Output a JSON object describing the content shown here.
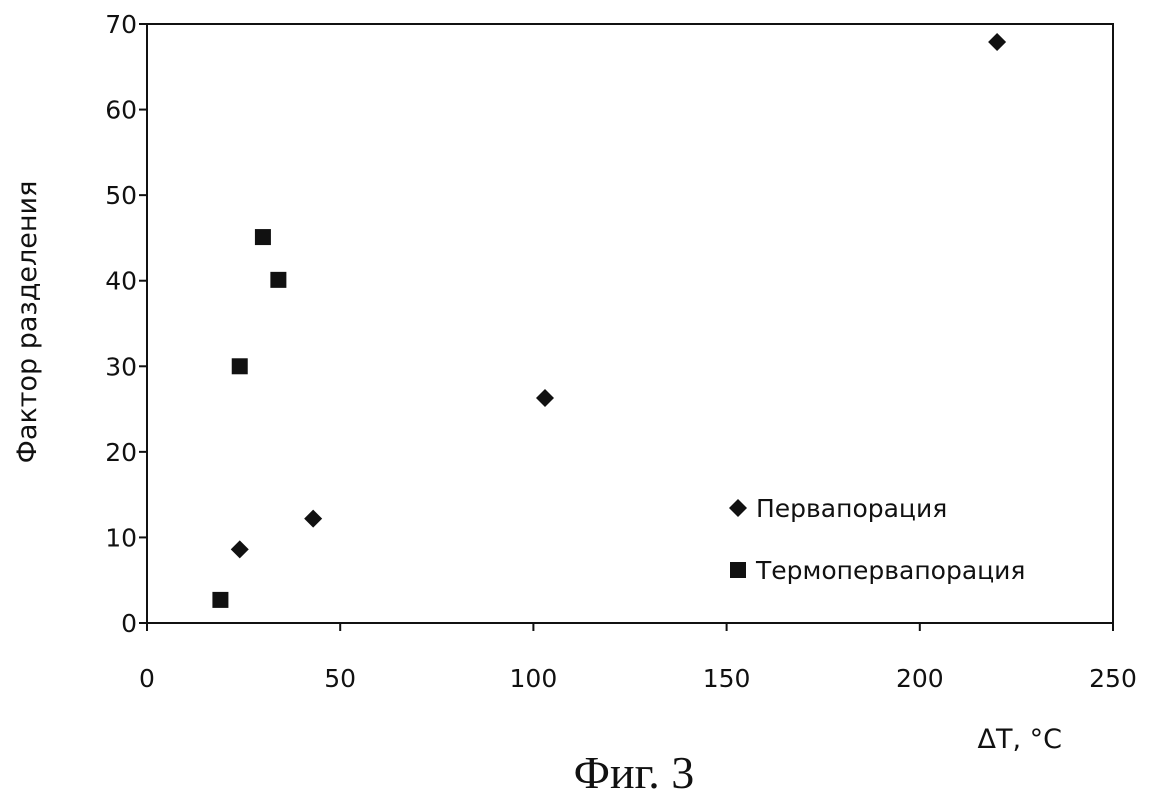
{
  "chart_data": {
    "type": "scatter",
    "title": "",
    "xlabel": "ΔT, °C",
    "ylabel": "Фактор разделения",
    "xlim": [
      0,
      250
    ],
    "ylim": [
      0,
      70
    ],
    "x_ticks": [
      0,
      50,
      100,
      150,
      200,
      250
    ],
    "y_ticks": [
      0,
      10,
      20,
      30,
      40,
      50,
      60,
      70
    ],
    "grid": false,
    "legend_position": "bottom-right",
    "series": [
      {
        "name": "Первапорация",
        "marker": "diamond",
        "color": "#111111",
        "points": [
          {
            "x": 24,
            "y": 8.6
          },
          {
            "x": 43,
            "y": 12.2
          },
          {
            "x": 103,
            "y": 26.3
          },
          {
            "x": 220,
            "y": 67.9
          }
        ]
      },
      {
        "name": "Термопервапорация",
        "marker": "square",
        "color": "#111111",
        "points": [
          {
            "x": 19,
            "y": 2.7
          },
          {
            "x": 24,
            "y": 30
          },
          {
            "x": 30,
            "y": 45.1
          },
          {
            "x": 34,
            "y": 40.1
          }
        ]
      }
    ]
  },
  "caption": "Фиг. 3"
}
